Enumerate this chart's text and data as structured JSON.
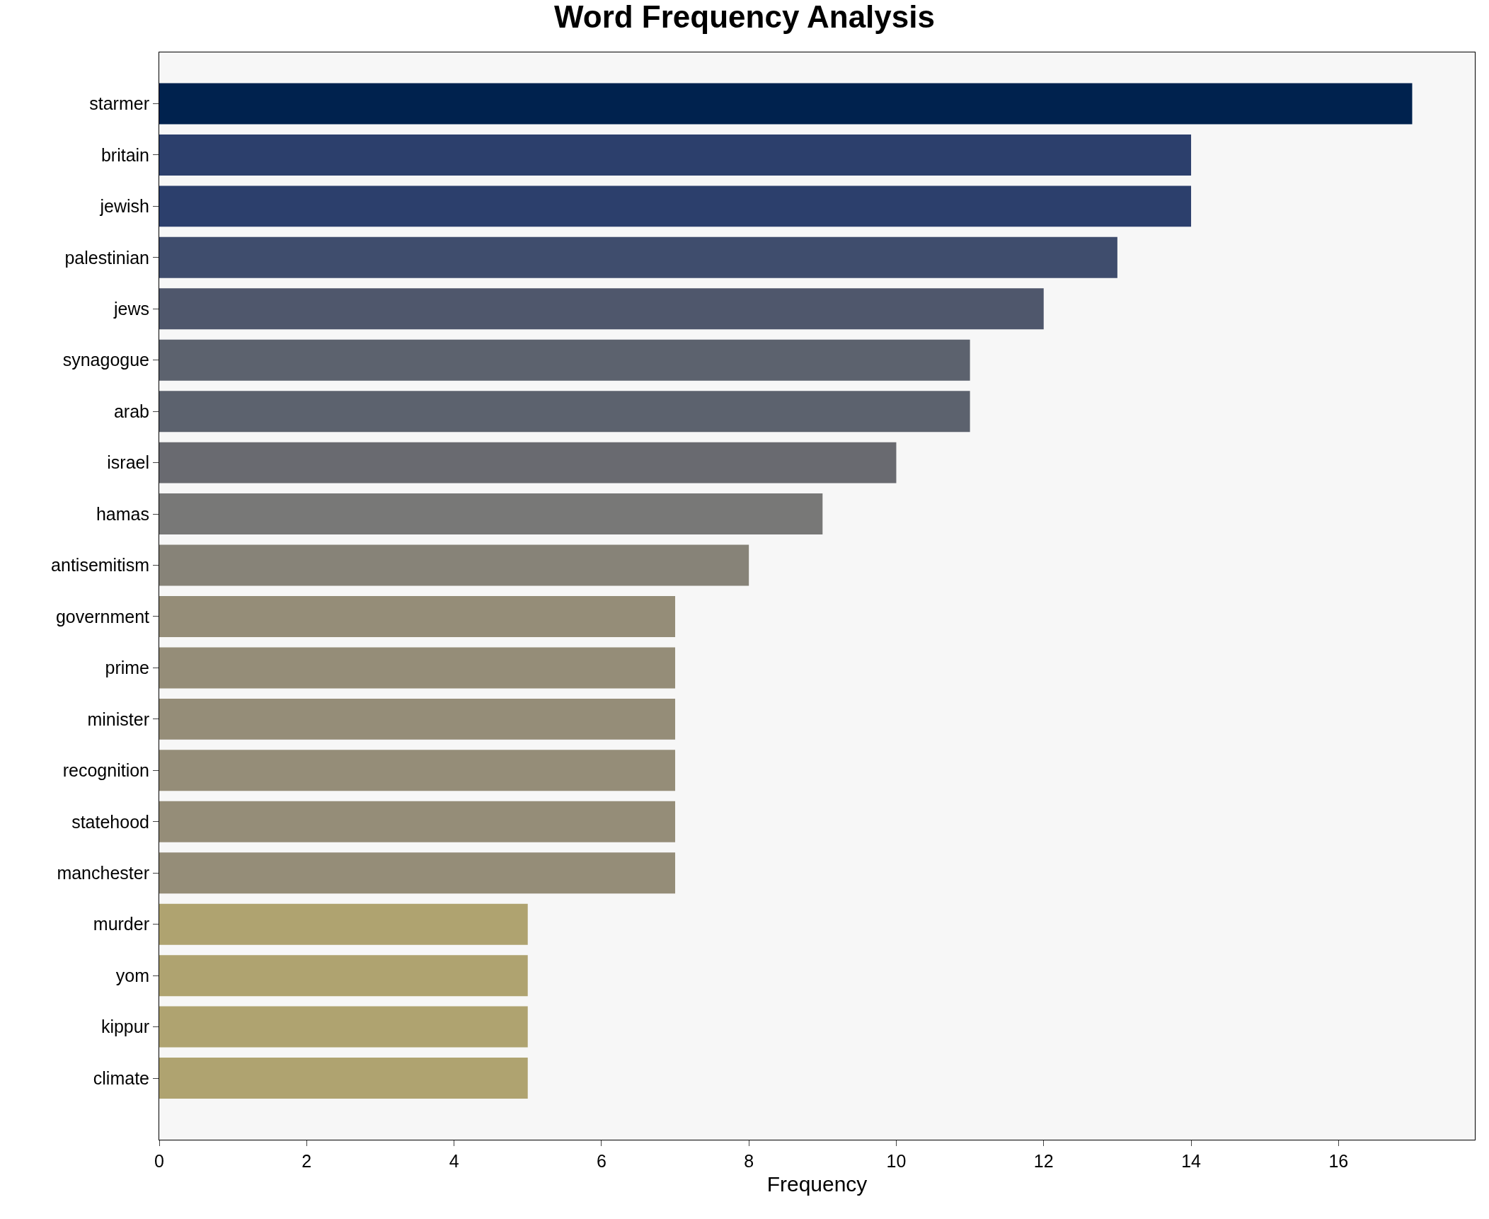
{
  "chart_data": {
    "type": "bar",
    "orientation": "horizontal",
    "title": "Word Frequency Analysis",
    "xlabel": "Frequency",
    "categories": [
      "starmer",
      "britain",
      "jewish",
      "palestinian",
      "jews",
      "synagogue",
      "arab",
      "israel",
      "hamas",
      "antisemitism",
      "government",
      "prime",
      "minister",
      "recognition",
      "statehood",
      "manchester",
      "murder",
      "yom",
      "kippur",
      "climate"
    ],
    "values": [
      17,
      14,
      14,
      13,
      12,
      11,
      11,
      10,
      9,
      8,
      7,
      7,
      7,
      7,
      7,
      7,
      5,
      5,
      5,
      5
    ],
    "colors": [
      "#00224e",
      "#2c3f6c",
      "#2c3f6c",
      "#3f4d6d",
      "#4f576c",
      "#5c626e",
      "#5c626e",
      "#696a70",
      "#787877",
      "#878378",
      "#958d78",
      "#958d78",
      "#958d78",
      "#958d78",
      "#958d78",
      "#958d78",
      "#afa370",
      "#afa370",
      "#afa370",
      "#afa370"
    ],
    "xlim": [
      0,
      17.85
    ],
    "xticks": [
      0,
      2,
      4,
      6,
      8,
      10,
      12,
      14,
      16
    ],
    "grid": false,
    "legend": false
  }
}
